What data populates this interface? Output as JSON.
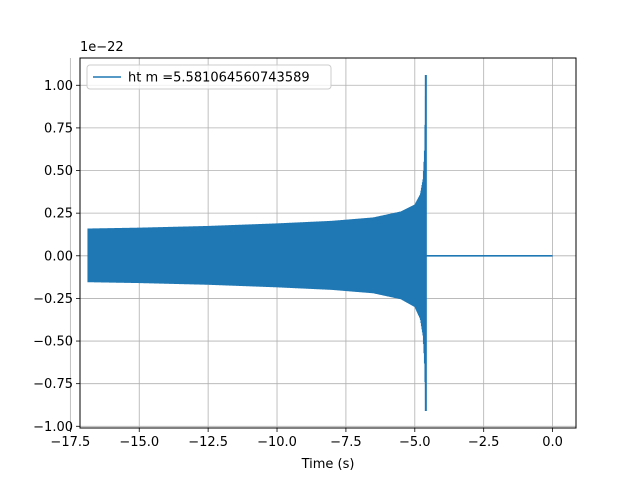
{
  "chart_data": {
    "type": "line",
    "xlabel": "Time (s)",
    "ylabel": "",
    "title": "",
    "y_scale_label": "1e−22",
    "y_multiplier": 1e-22,
    "xlim": [
      -17.15,
      0.85
    ],
    "ylim": [
      -1.01,
      1.16
    ],
    "x_ticks": [
      -17.5,
      -15.0,
      -12.5,
      -10.0,
      -7.5,
      -5.0,
      -2.5,
      0.0
    ],
    "x_tick_labels": [
      "−17.5",
      "−15.0",
      "−12.5",
      "−10.0",
      "−7.5",
      "−5.0",
      "−2.5",
      "0.0"
    ],
    "y_ticks": [
      -1.0,
      -0.75,
      -0.5,
      -0.25,
      0.0,
      0.25,
      0.5,
      0.75,
      1.0
    ],
    "y_tick_labels": [
      "−1.00",
      "−0.75",
      "−0.50",
      "−0.25",
      "0.00",
      "0.25",
      "0.50",
      "0.75",
      "1.00"
    ],
    "grid": true,
    "legend_position": "top-left",
    "series": [
      {
        "name": "ht m =5.581064560743589",
        "color": "#1f77b4",
        "t_start": -16.85,
        "t_merger": -4.6,
        "t_end": 0.0,
        "envelope": {
          "t": [
            -16.85,
            -15.0,
            -12.5,
            -10.0,
            -8.0,
            -6.5,
            -5.5,
            -5.0,
            -4.8,
            -4.7,
            -4.65,
            -4.62,
            -4.6
          ],
          "upper": [
            0.16,
            0.165,
            0.175,
            0.19,
            0.205,
            0.225,
            0.26,
            0.3,
            0.36,
            0.45,
            0.6,
            0.85,
            1.06
          ],
          "lower": [
            -0.155,
            -0.16,
            -0.17,
            -0.185,
            -0.2,
            -0.22,
            -0.255,
            -0.3,
            -0.37,
            -0.47,
            -0.62,
            -0.8,
            -0.91
          ]
        },
        "ringdown_value": 0.0
      }
    ]
  }
}
